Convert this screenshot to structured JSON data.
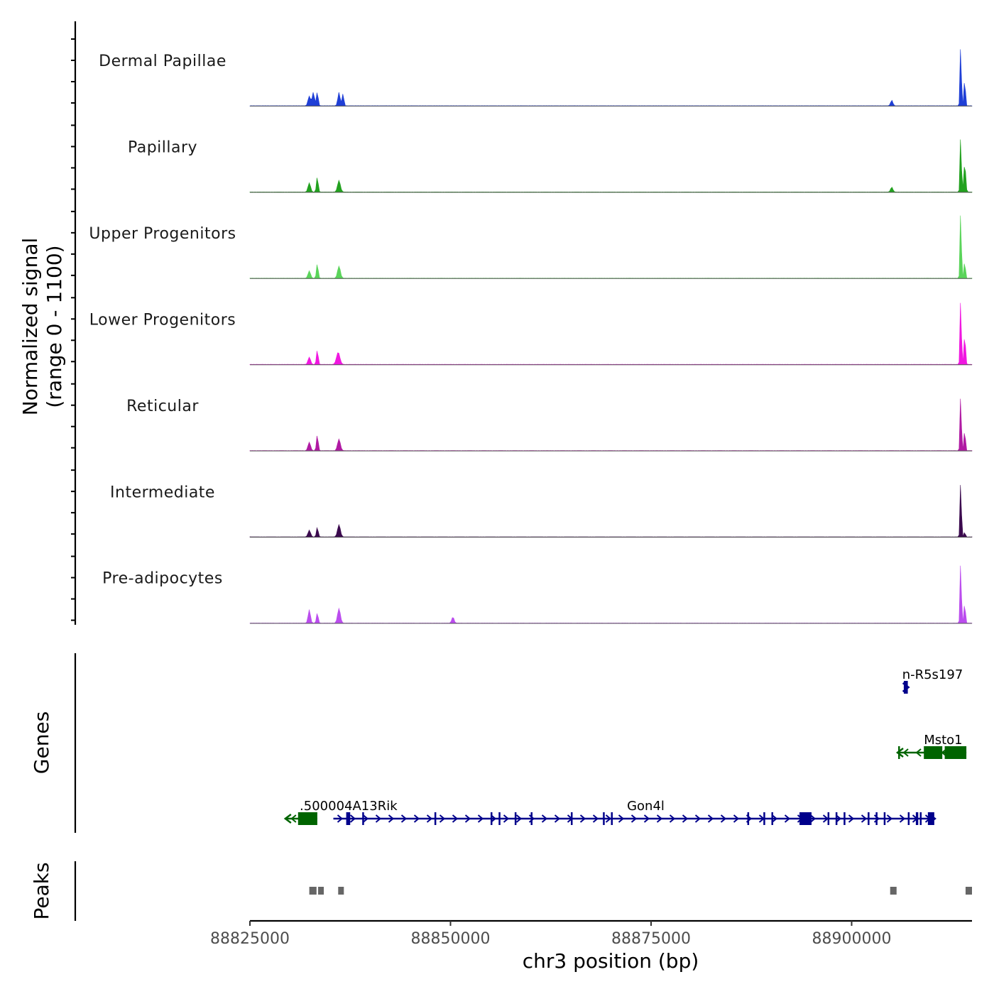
{
  "chart_data": {
    "type": "coverage",
    "chromosome": "chr3",
    "xlabel": "chr3 position (bp)",
    "xlim": [
      88825000,
      88915000
    ],
    "x_ticks": [
      88825000,
      88850000,
      88875000,
      88900000
    ],
    "x_tick_labels": [
      "88825000",
      "88850000",
      "88875000",
      "88900000"
    ],
    "coverage": {
      "ylabel_line1": "Normalized signal",
      "ylabel_line2": "(range 0 - 1100)",
      "ylim": [
        0,
        1100
      ],
      "tracks": [
        {
          "name": "Dermal Papillae",
          "color": "#1f3fd6",
          "peaks": [
            [
              88832400,
              160,
              220
            ],
            [
              88832900,
              220,
              200
            ],
            [
              88833400,
              230,
              150
            ],
            [
              88836100,
              220,
              200
            ],
            [
              88836600,
              200,
              150
            ],
            [
              88905000,
              90,
              200
            ],
            [
              88913600,
              1100,
              110
            ],
            [
              88914100,
              520,
              110
            ]
          ]
        },
        {
          "name": "Papillary",
          "color": "#22a11f",
          "peaks": [
            [
              88832400,
              150,
              220
            ],
            [
              88833400,
              250,
              150
            ],
            [
              88836100,
              190,
              250
            ],
            [
              88905000,
              80,
              200
            ],
            [
              88913600,
              1020,
              110
            ],
            [
              88914100,
              480,
              160
            ]
          ]
        },
        {
          "name": "Upper Progenitors",
          "color": "#5ad45a",
          "peaks": [
            [
              88832400,
              120,
              220
            ],
            [
              88833400,
              240,
              150
            ],
            [
              88836100,
              200,
              250
            ],
            [
              88913600,
              1220,
              110
            ],
            [
              88914100,
              330,
              110
            ]
          ]
        },
        {
          "name": "Lower Progenitors",
          "color": "#f017e0",
          "peaks": [
            [
              88832400,
              120,
              220
            ],
            [
              88833400,
              240,
              150
            ],
            [
              88836000,
              200,
              300
            ],
            [
              88913600,
              1200,
              110
            ],
            [
              88914100,
              520,
              130
            ]
          ]
        },
        {
          "name": "Reticular",
          "color": "#b01aa3",
          "peaks": [
            [
              88832400,
              140,
              220
            ],
            [
              88833400,
              260,
              150
            ],
            [
              88836100,
              190,
              250
            ],
            [
              88913600,
              1010,
              110
            ],
            [
              88914100,
              400,
              110
            ]
          ]
        },
        {
          "name": "Intermediate",
          "color": "#3b0a4e",
          "peaks": [
            [
              88832400,
              110,
              220
            ],
            [
              88833400,
              160,
              150
            ],
            [
              88836100,
              200,
              250
            ],
            [
              88913600,
              1010,
              110
            ],
            [
              88914100,
              100,
              100
            ]
          ]
        },
        {
          "name": "Pre-adipocytes",
          "color": "#bb4cee",
          "peaks": [
            [
              88832400,
              220,
              200
            ],
            [
              88833400,
              170,
              150
            ],
            [
              88836100,
              240,
              250
            ],
            [
              88850300,
              100,
              200
            ],
            [
              88913600,
              1120,
              110
            ],
            [
              88914100,
              390,
              110
            ]
          ]
        }
      ]
    },
    "genes": {
      "label": "Genes",
      "items": [
        {
          "name": "n-R5s197",
          "strand": "+",
          "color": "#00008b",
          "row": 1,
          "start": 88906500,
          "end": 88907000,
          "label_pos": 88906300,
          "exons": [
            [
              88906500,
              88907000
            ]
          ]
        },
        {
          "name": "Msto1",
          "strand": "-",
          "color": "#006400",
          "row": 2,
          "start": 88905800,
          "end": 88914300,
          "label_pos": 88909000,
          "exons": [
            [
              88905800,
              88906000
            ],
            [
              88909000,
              88911300
            ],
            [
              88911600,
              88914300
            ]
          ]
        },
        {
          "name": ".500004A13Rik",
          "strand": "-",
          "color": "#006400",
          "row": 3,
          "start": 88829500,
          "end": 88833400,
          "label_pos": 88831200,
          "exons": [
            [
              88831000,
              88833400
            ]
          ]
        },
        {
          "name": "Gon4l",
          "strand": "+",
          "color": "#00008b",
          "row": 3,
          "start": 88835400,
          "end": 88910300,
          "label_pos": 88872000,
          "exons": [
            [
              88837000,
              88837500
            ],
            [
              88839000,
              88839150
            ],
            [
              88848000,
              88848150
            ],
            [
              88855000,
              88855150
            ],
            [
              88856000,
              88856150
            ],
            [
              88858000,
              88858200
            ],
            [
              88860000,
              88860150
            ],
            [
              88865000,
              88865150
            ],
            [
              88869000,
              88869150
            ],
            [
              88870000,
              88870150
            ],
            [
              88887000,
              88887150
            ],
            [
              88889000,
              88889150
            ],
            [
              88890000,
              88890150
            ],
            [
              88893500,
              88895000
            ],
            [
              88897000,
              88897200
            ],
            [
              88898000,
              88898150
            ],
            [
              88899000,
              88899150
            ],
            [
              88902000,
              88902150
            ],
            [
              88903000,
              88903150
            ],
            [
              88904000,
              88904150
            ],
            [
              88907000,
              88907150
            ],
            [
              88908000,
              88908300
            ],
            [
              88908500,
              88908700
            ],
            [
              88909500,
              88910300
            ]
          ]
        }
      ]
    },
    "peaks": {
      "label": "Peaks",
      "color": "#666666",
      "regions": [
        [
          88832400,
          88833300
        ],
        [
          88833500,
          88834200
        ],
        [
          88836000,
          88836700
        ],
        [
          88904800,
          88905600
        ],
        [
          88914200,
          88915000
        ]
      ]
    }
  }
}
